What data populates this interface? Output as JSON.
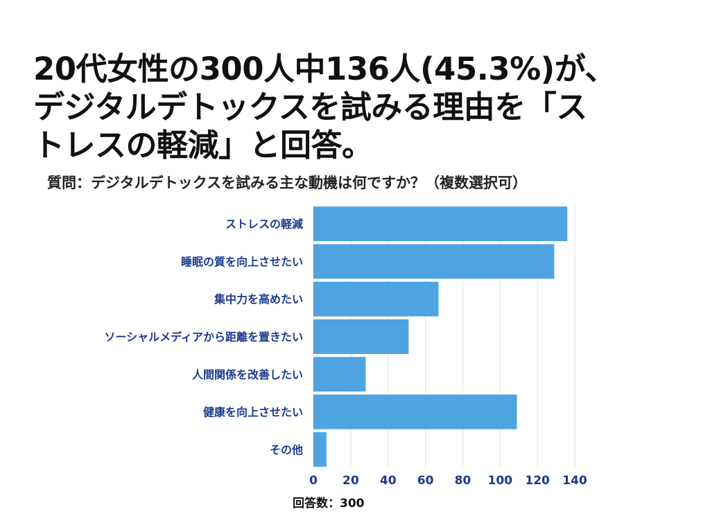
{
  "headline": {
    "lines": [
      "20代女性の300人中136人(45.3%)が、",
      "デジタルデトックスを試みる理由を「ス",
      "トレスの軽減」と回答。"
    ]
  },
  "question": "質問：デジタルデトックスを試みる主な動機は何ですか？（複数選択可）",
  "footer": "回答数：300",
  "colors": {
    "bar": "#4ea4e0",
    "label": "#1a3a8f",
    "grid": "#dde0ea"
  },
  "chart_data": {
    "type": "bar",
    "orientation": "horizontal",
    "categories": [
      "ストレスの軽減",
      "睡眠の質を向上させたい",
      "集中力を高めたい",
      "ソーシャルメディアから距離を置きたい",
      "人間関係を改善したい",
      "健康を向上させたい",
      "その他"
    ],
    "values": [
      136,
      129,
      67,
      51,
      28,
      109,
      7
    ],
    "xlim": [
      0,
      140
    ],
    "xticks": [
      0,
      20,
      40,
      60,
      80,
      100,
      120,
      140
    ],
    "grid": true
  }
}
